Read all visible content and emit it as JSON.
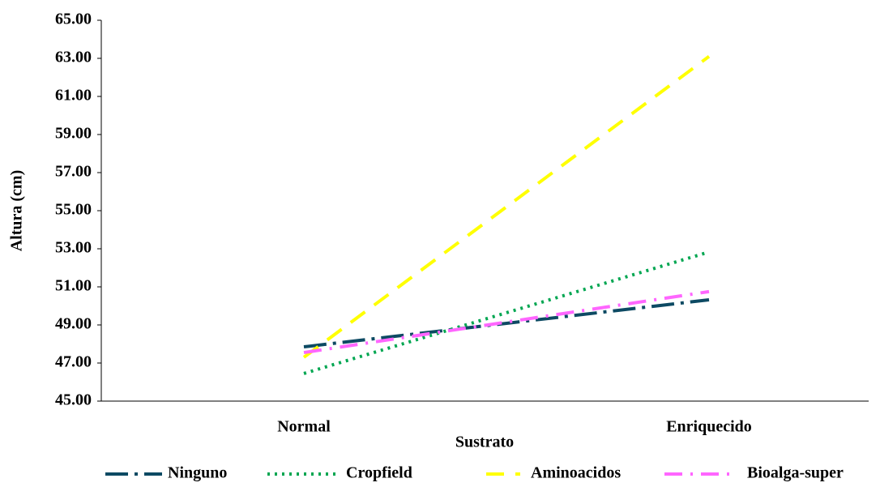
{
  "chart_data": {
    "type": "line",
    "x_label": "Sustrato",
    "y_label": "Altura (cm)",
    "categories": [
      "Normal",
      "Enriquecido"
    ],
    "series": [
      {
        "name": "Ninguno",
        "color": "#0d4a63",
        "dash": "long-dash-dot",
        "values": [
          47.85,
          50.32
        ]
      },
      {
        "name": "Cropfield",
        "color": "#00a651",
        "dash": "dot",
        "values": [
          46.45,
          52.83
        ]
      },
      {
        "name": "Aminoacidos",
        "color": "#ffff00",
        "dash": "dash",
        "values": [
          47.3,
          63.1
        ]
      },
      {
        "name": "Bioalga-super",
        "color": "#ff66ff",
        "dash": "dash-dot",
        "values": [
          47.55,
          50.75
        ]
      }
    ],
    "ylim": [
      45,
      65
    ],
    "yticks": [
      {
        "value": 45,
        "label": "45.00"
      },
      {
        "value": 47,
        "label": "47.00"
      },
      {
        "value": 49,
        "label": "49.00"
      },
      {
        "value": 51,
        "label": "51.00"
      },
      {
        "value": 53,
        "label": "53.00"
      },
      {
        "value": 55,
        "label": "55.00"
      },
      {
        "value": 57,
        "label": "57.00"
      },
      {
        "value": 59,
        "label": "59.00"
      },
      {
        "value": 61,
        "label": "61.00"
      },
      {
        "value": 63,
        "label": "63.00"
      },
      {
        "value": 65,
        "label": "65.00"
      }
    ],
    "grid": false,
    "legend": "bottom"
  }
}
